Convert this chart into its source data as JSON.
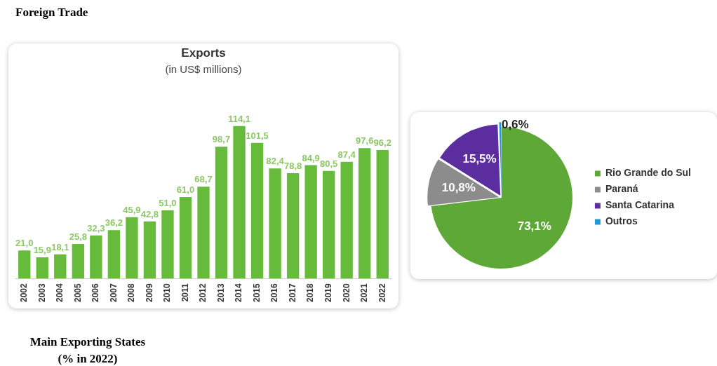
{
  "chart_data": [
    {
      "type": "bar",
      "title": "Exports",
      "subtitle": "(in US$ millions)",
      "annotations": [
        "Foreign Trade",
        "Main Exporting States",
        "(% in 2022)"
      ],
      "categories": [
        "2002",
        "2003",
        "2004",
        "2005",
        "2006",
        "2007",
        "2008",
        "2009",
        "2010",
        "2011",
        "2012",
        "2013",
        "2014",
        "2015",
        "2016",
        "2017",
        "2018",
        "2019",
        "2020",
        "2021",
        "2022"
      ],
      "values": [
        21.0,
        15.9,
        18.1,
        25.8,
        32.3,
        36.2,
        45.9,
        42.8,
        51.0,
        61.0,
        68.7,
        98.7,
        114.1,
        101.5,
        82.4,
        78.8,
        84.9,
        80.5,
        87.4,
        97.6,
        96.2
      ],
      "value_labels": [
        "21,0",
        "15,9",
        "18,1",
        "25,8",
        "32,3",
        "36,2",
        "45,9",
        "42,8",
        "51,0",
        "61,0",
        "68,7",
        "98,7",
        "114,1",
        "101,5",
        "82,4",
        "78,8",
        "84,9",
        "80,5",
        "87,4",
        "97,6",
        "96,2"
      ],
      "color": "#66bb3a",
      "grid": false,
      "tick_labels": "x"
    },
    {
      "type": "pie",
      "categories": [
        "Rio Grande do Sul",
        "Paraná",
        "Santa Catarina",
        "Outros"
      ],
      "values": [
        73.1,
        10.8,
        15.5,
        0.6
      ],
      "value_labels": [
        "73,1%",
        "10,8%",
        "15,5%",
        "0,6%"
      ],
      "colors": [
        "#5ea838",
        "#8c8c8c",
        "#5b2d9e",
        "#1e9bd7"
      ],
      "legend": "right"
    }
  ]
}
